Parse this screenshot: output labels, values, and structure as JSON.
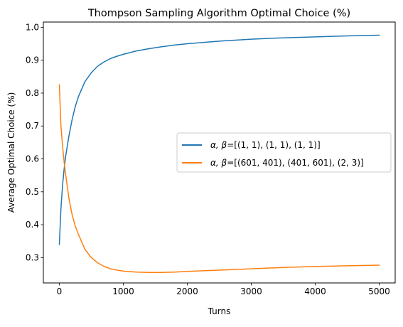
{
  "chart_data": {
    "type": "line",
    "title": "Thompson Sampling Algorithm Optimal Choice (%)",
    "xlabel": "Turns",
    "ylabel": "Average Optimal Choice (%)",
    "xlim": [
      -250,
      5250
    ],
    "ylim": [
      0.223,
      1.016
    ],
    "xticks": [
      0,
      1000,
      2000,
      3000,
      4000,
      5000
    ],
    "yticks": [
      0.3,
      0.4,
      0.5,
      0.6,
      0.7,
      0.8,
      0.9,
      1.0
    ],
    "xtick_labels": [
      "0",
      "1000",
      "2000",
      "3000",
      "4000",
      "5000"
    ],
    "ytick_labels": [
      "0.3",
      "0.4",
      "0.5",
      "0.6",
      "0.7",
      "0.8",
      "0.9",
      "1.0"
    ],
    "grid": false,
    "legend_position": "center-right",
    "series": [
      {
        "name_prefix": "α, β",
        "name_suffix": "=[(1, 1), (1, 1), (1, 1)]",
        "color": "#1f77b4",
        "x": [
          0,
          25,
          50,
          75,
          100,
          150,
          200,
          250,
          300,
          400,
          500,
          600,
          700,
          800,
          900,
          1000,
          1200,
          1400,
          1600,
          1800,
          2000,
          2500,
          3000,
          3500,
          4000,
          4500,
          5000
        ],
        "values": [
          0.34,
          0.45,
          0.52,
          0.57,
          0.61,
          0.67,
          0.72,
          0.76,
          0.79,
          0.835,
          0.862,
          0.882,
          0.895,
          0.905,
          0.912,
          0.918,
          0.928,
          0.935,
          0.941,
          0.946,
          0.95,
          0.958,
          0.964,
          0.968,
          0.971,
          0.974,
          0.976
        ]
      },
      {
        "name_prefix": "α, β",
        "name_suffix": "=[(601, 401), (401, 601), (2, 3)]",
        "color": "#ff7f0e",
        "x": [
          0,
          25,
          50,
          75,
          100,
          150,
          200,
          250,
          300,
          400,
          500,
          600,
          700,
          800,
          900,
          1000,
          1200,
          1400,
          1600,
          1800,
          2000,
          2500,
          3000,
          3500,
          4000,
          4500,
          5000
        ],
        "values": [
          0.825,
          0.7,
          0.64,
          0.59,
          0.55,
          0.48,
          0.43,
          0.395,
          0.37,
          0.325,
          0.3,
          0.284,
          0.273,
          0.266,
          0.262,
          0.259,
          0.256,
          0.255,
          0.255,
          0.256,
          0.258,
          0.262,
          0.266,
          0.27,
          0.273,
          0.275,
          0.277
        ]
      }
    ]
  }
}
